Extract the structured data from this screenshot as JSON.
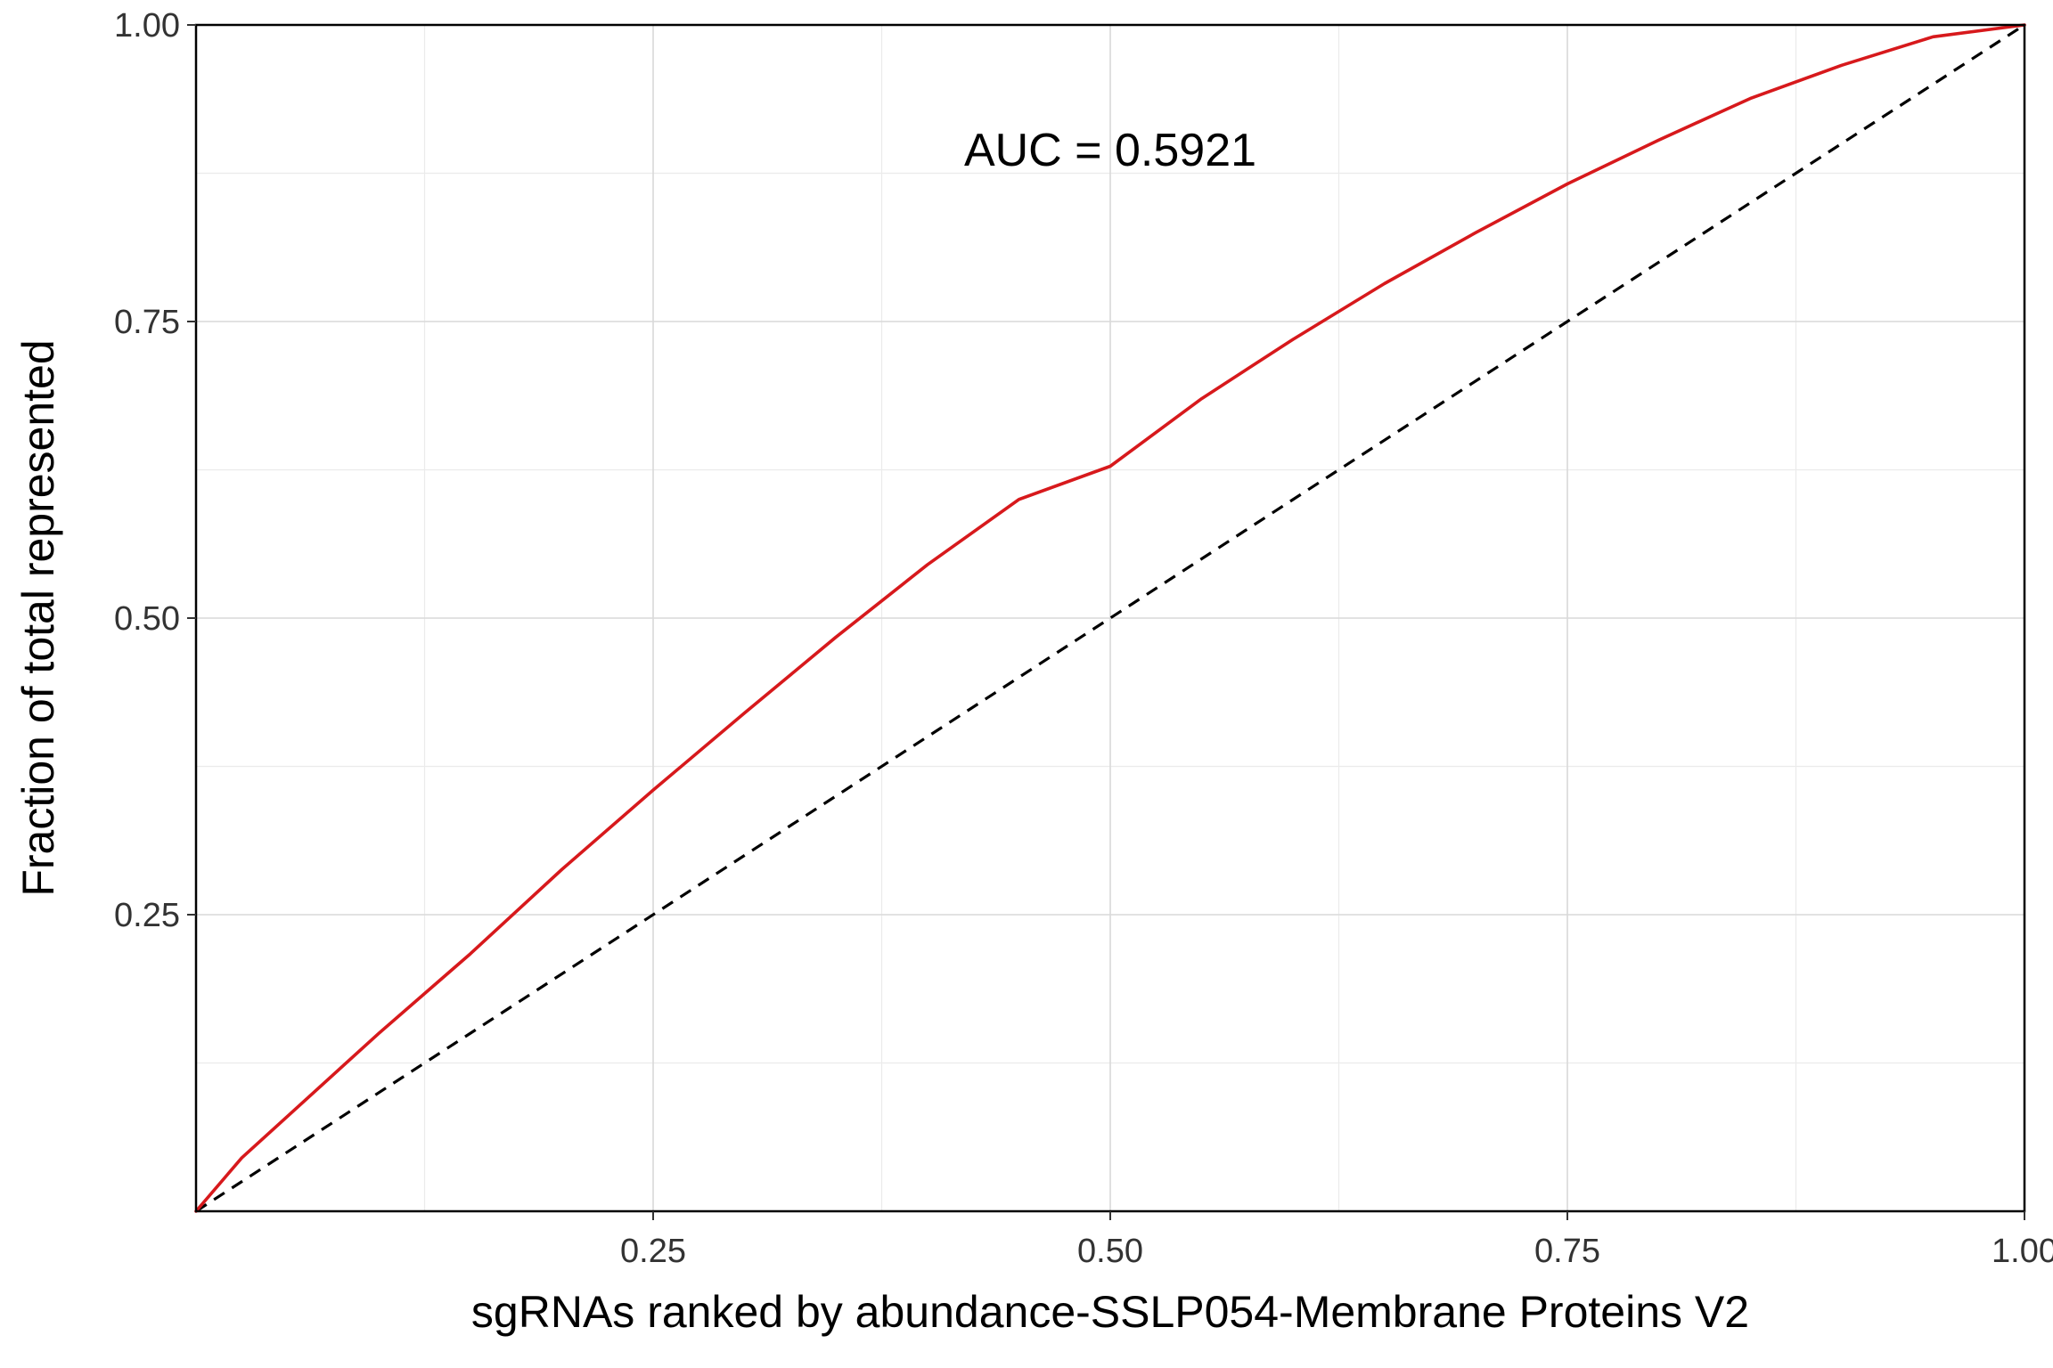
{
  "chart_data": {
    "type": "line",
    "title": "",
    "xlabel": "sgRNAs ranked by abundance-SSLP054-Membrane Proteins V2",
    "ylabel": "Fraction of total represented",
    "xlim": [
      0,
      1
    ],
    "ylim": [
      0,
      1
    ],
    "grid": true,
    "x_ticks": [
      {
        "value": 0.25,
        "label": "0.25"
      },
      {
        "value": 0.5,
        "label": "0.50"
      },
      {
        "value": 0.75,
        "label": "0.75"
      },
      {
        "value": 1.0,
        "label": "1.00"
      }
    ],
    "y_ticks": [
      {
        "value": 0.25,
        "label": "0.25"
      },
      {
        "value": 0.5,
        "label": "0.50"
      },
      {
        "value": 0.75,
        "label": "0.75"
      },
      {
        "value": 1.0,
        "label": "1.00"
      }
    ],
    "annotation": {
      "text": "AUC = 0.5921",
      "x": 0.5,
      "y": 0.895
    },
    "series": [
      {
        "color": "#d7191c",
        "style": "solid",
        "x": [
          0,
          0.025,
          0.05,
          0.1,
          0.15,
          0.2,
          0.25,
          0.3,
          0.35,
          0.4,
          0.45,
          0.5,
          0.55,
          0.6,
          0.65,
          0.7,
          0.75,
          0.8,
          0.85,
          0.9,
          0.95,
          1.0
        ],
        "y": [
          0,
          0.045,
          0.08,
          0.15,
          0.217,
          0.288,
          0.355,
          0.42,
          0.484,
          0.545,
          0.6,
          0.628,
          0.685,
          0.735,
          0.782,
          0.825,
          0.866,
          0.903,
          0.938,
          0.966,
          0.99,
          1.0
        ]
      },
      {
        "color": "#000000",
        "style": "dashed",
        "x": [
          0,
          1
        ],
        "y": [
          0,
          1
        ]
      }
    ]
  }
}
